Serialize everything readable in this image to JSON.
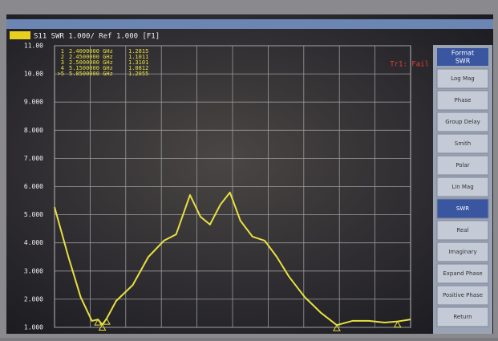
{
  "chart_data": {
    "type": "line",
    "title": "S11 SWR 1.000/ Ref 1.000 [F1]",
    "status": "Tr1: Fail",
    "x": [
      1.9,
      2.06,
      2.2,
      2.33,
      2.4,
      2.45,
      2.5,
      2.61,
      2.8,
      2.98,
      3.16,
      3.3,
      3.46,
      3.58,
      3.69,
      3.81,
      3.92,
      4.04,
      4.18,
      4.32,
      4.46,
      4.6,
      4.78,
      4.97,
      5.15,
      5.33,
      5.52,
      5.7,
      5.85,
      6.0
    ],
    "values": [
      5.27,
      3.5,
      2.08,
      1.23,
      1.28,
      1.1,
      1.31,
      1.94,
      2.5,
      3.5,
      4.08,
      4.3,
      5.7,
      4.93,
      4.65,
      5.36,
      5.79,
      4.79,
      4.22,
      4.08,
      3.5,
      2.8,
      2.08,
      1.51,
      1.08,
      1.23,
      1.23,
      1.17,
      1.21,
      1.28
    ],
    "color": "#e8e040",
    "xlim": [
      1.9,
      6.0
    ],
    "ylim": [
      1,
      11
    ],
    "yticks": [
      {
        "value": 1,
        "label": "1.000"
      },
      {
        "value": 2,
        "label": "2.000"
      },
      {
        "value": 3,
        "label": "3.000"
      },
      {
        "value": 4,
        "label": "4.000"
      },
      {
        "value": 5,
        "label": "5.000"
      },
      {
        "value": 6,
        "label": "6.000"
      },
      {
        "value": 7,
        "label": "7.000"
      },
      {
        "value": 8,
        "label": "8.000"
      },
      {
        "value": 9,
        "label": "9.000"
      },
      {
        "value": 10,
        "label": "10.00"
      },
      {
        "value": 11,
        "label": "11.00"
      }
    ],
    "grid": true,
    "markers": [
      {
        "label": "1",
        "freq": {
          "value": 2.4,
          "label": "2.4000000 GHz"
        },
        "value": 1.2815
      },
      {
        "label": "2",
        "freq": {
          "value": 2.45,
          "label": "2.4500000 GHz"
        },
        "value": 1.1011
      },
      {
        "label": "3",
        "freq": {
          "value": 2.5,
          "label": "2.5000000 GHz"
        },
        "value": 1.3101
      },
      {
        "label": "4",
        "freq": {
          "value": 5.15,
          "label": "5.1500000 GHz"
        },
        "value": 1.0812
      },
      {
        "label": ">5",
        "freq": {
          "value": 5.85,
          "label": "5.8500000 GHz"
        },
        "value": 1.2055
      }
    ]
  },
  "softkeys": {
    "title": "Format",
    "current": "SWR",
    "selected": 6,
    "items": [
      "Log Mag",
      "Phase",
      "Group Delay",
      "Smith",
      "Polar",
      "Lin Mag",
      "SWR",
      "Real",
      "Imaginary",
      "Expand Phase",
      "Positive Phase",
      "Return"
    ]
  }
}
